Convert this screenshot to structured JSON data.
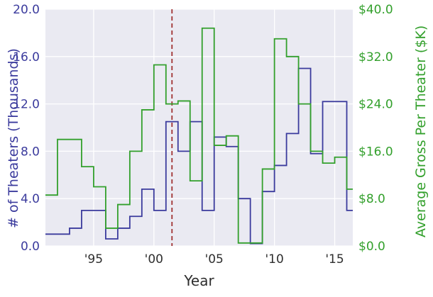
{
  "chart_data": {
    "type": "line",
    "subtype": "step-post",
    "title": "",
    "xlabel": "Year",
    "plot_bg": "#eaeaf2",
    "grid_color": "#ffffff",
    "xlim": [
      1991,
      2016.5
    ],
    "x_years": [
      1991,
      1992,
      1993,
      1994,
      1995,
      1996,
      1997,
      1998,
      1999,
      2000,
      2001,
      2002,
      2003,
      2004,
      2005,
      2006,
      2007,
      2008,
      2009,
      2010,
      2011,
      2012,
      2013,
      2014,
      2015,
      2016
    ],
    "xticks": [
      {
        "value": 1995,
        "label": "'95"
      },
      {
        "value": 2000,
        "label": "'00"
      },
      {
        "value": 2005,
        "label": "'05"
      },
      {
        "value": 2010,
        "label": "'10"
      },
      {
        "value": 2015,
        "label": "'15"
      }
    ],
    "left_axis": {
      "label": "# of Theaters (Thousands)",
      "color": "#3b3b9d",
      "lim": [
        0,
        20
      ],
      "ticks": [
        0,
        4,
        8,
        12,
        16,
        20
      ],
      "tick_labels": [
        "0.0",
        "4.0",
        "8.0",
        "12.0",
        "16.0",
        "20.0"
      ]
    },
    "right_axis": {
      "label": "Average Gross Per Theater ($K)",
      "color": "#33a02c",
      "lim": [
        0,
        40
      ],
      "ticks": [
        0,
        8,
        16,
        24,
        32,
        40
      ],
      "tick_labels": [
        "$0.0",
        "$8.0",
        "$16.0",
        "$24.0",
        "$32.0",
        "$40.0"
      ]
    },
    "series": [
      {
        "name": "# of Theaters (Thousands)",
        "axis": "left",
        "color": "#3b3b9d",
        "values": [
          1.0,
          1.0,
          1.5,
          3.0,
          3.0,
          0.6,
          1.5,
          2.5,
          4.8,
          3.0,
          10.5,
          8.0,
          10.5,
          3.0,
          9.2,
          8.4,
          4.0,
          0.2,
          4.6,
          6.8,
          9.5,
          15.0,
          7.8,
          12.2,
          12.2,
          3.0
        ]
      },
      {
        "name": "Average Gross Per Theater ($K)",
        "axis": "right",
        "color": "#33a02c",
        "values": [
          8.6,
          18.0,
          18.0,
          13.4,
          10.0,
          3.0,
          7.0,
          16.0,
          23.0,
          30.6,
          24.0,
          24.5,
          11.0,
          36.8,
          17.0,
          18.6,
          0.5,
          0.5,
          13.0,
          35.0,
          32.0,
          24.0,
          16.0,
          14.0,
          15.0,
          9.6
        ]
      }
    ],
    "vline": {
      "x": 2001.5,
      "color": "#a03232",
      "style": "dashed"
    }
  }
}
